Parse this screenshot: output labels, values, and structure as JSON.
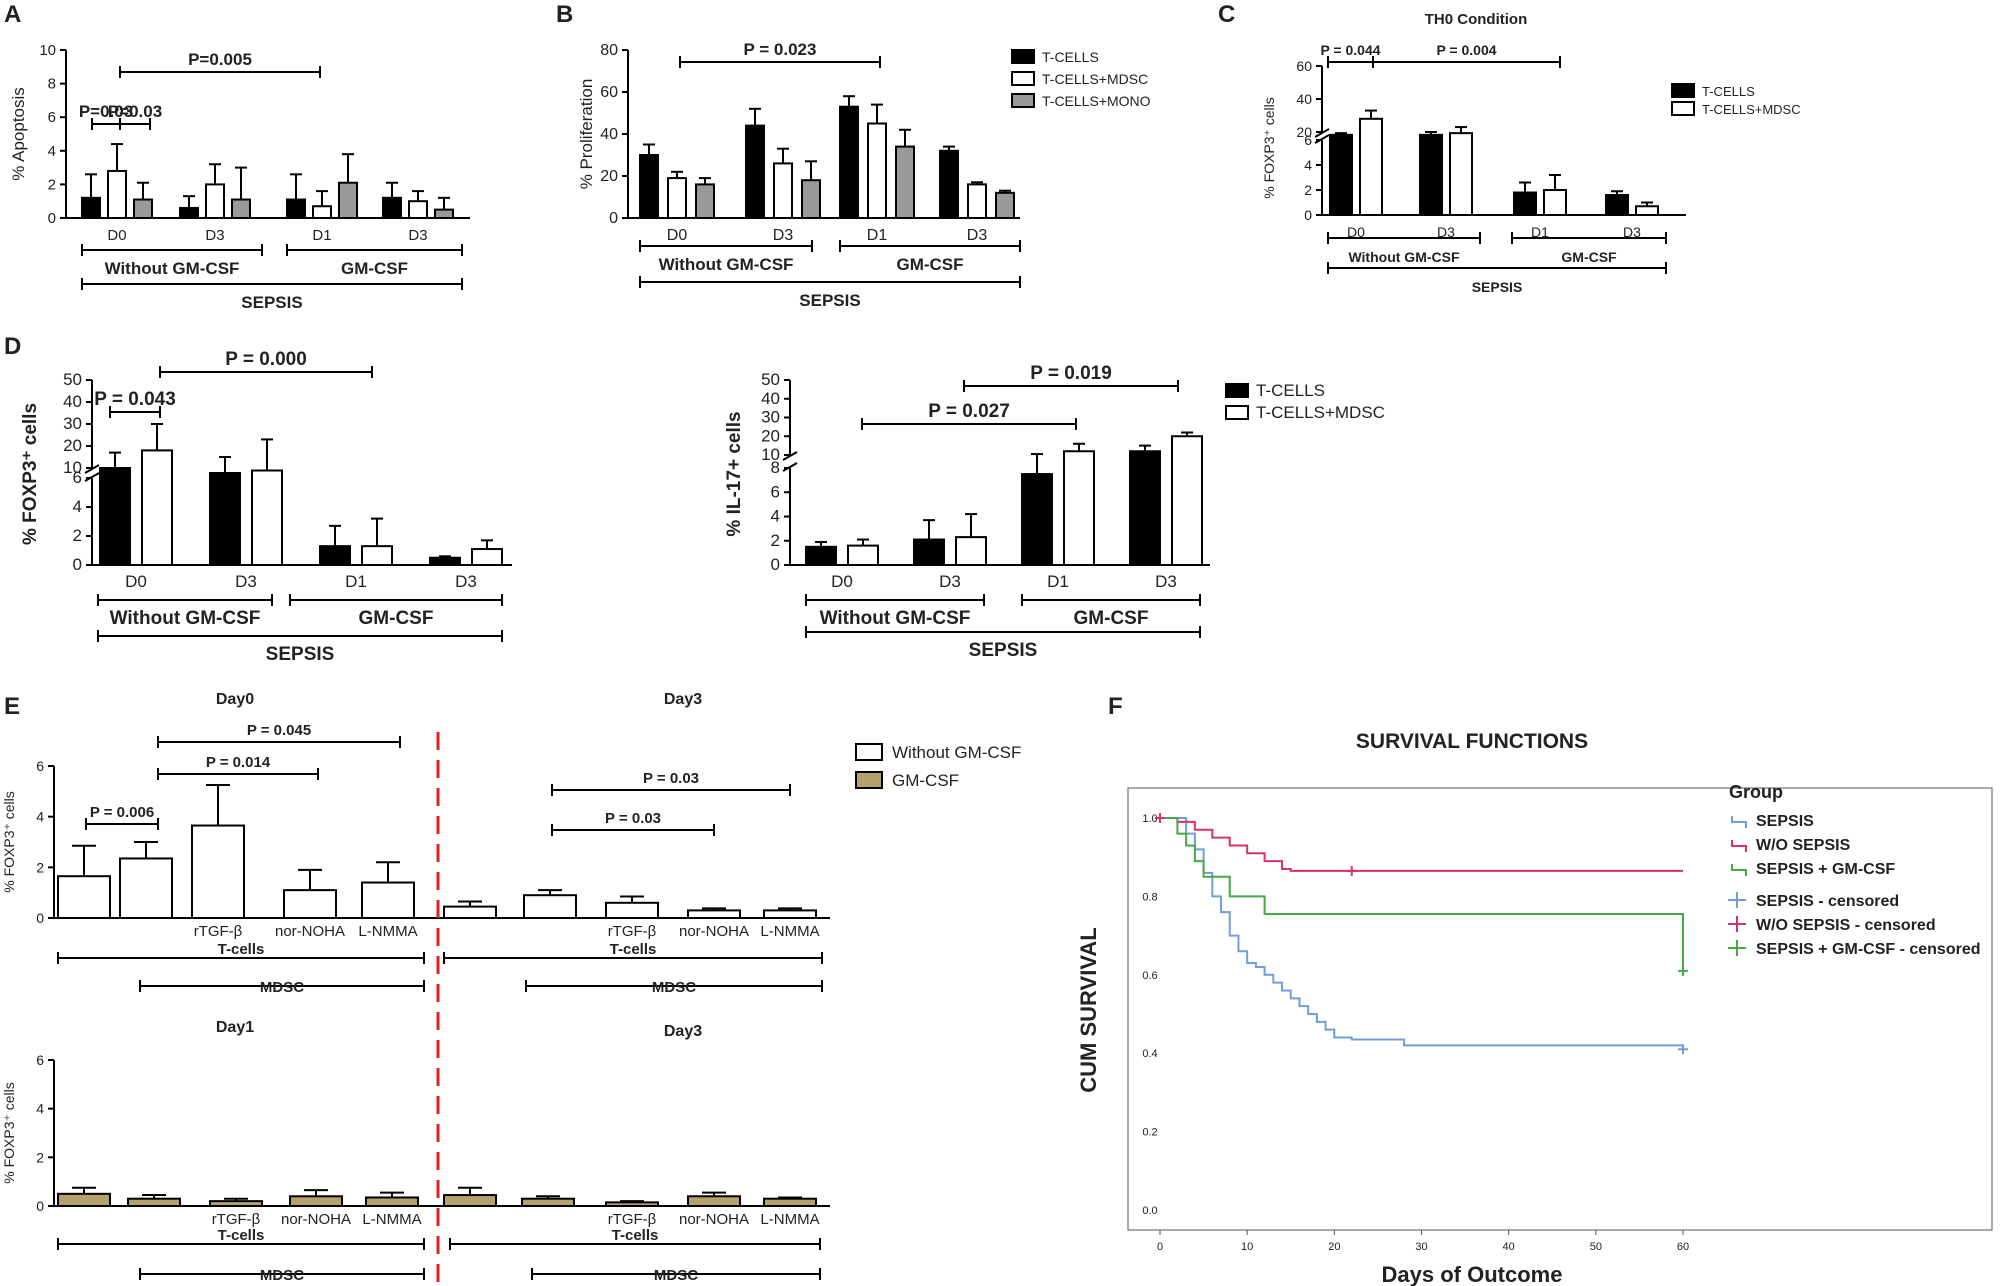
{
  "colors": {
    "black": "#000000",
    "white": "#ffffff",
    "grey": "#999999",
    "gold": "#b4a16b",
    "red": "#e02020",
    "sepsis": "#6f9fd8",
    "wo": "#d6336c",
    "gm": "#47a847"
  },
  "chart_data": [
    {
      "panel": "A",
      "type": "bar",
      "ylabel": "% Apoptosis",
      "ylim": [
        0,
        10
      ],
      "yticks": [
        0,
        2,
        4,
        6,
        8,
        10
      ],
      "categories": [
        "D0",
        "D3",
        "D1",
        "D3"
      ],
      "series": [
        {
          "name": "T-CELLS",
          "values": [
            1.2,
            0.6,
            1.1,
            1.2
          ],
          "err": [
            1.4,
            0.7,
            1.5,
            0.9
          ]
        },
        {
          "name": "T-CELLS+MDSC",
          "values": [
            2.8,
            2.0,
            0.7,
            1.0
          ],
          "err": [
            1.6,
            1.2,
            0.9,
            0.6
          ]
        },
        {
          "name": "T-CELLS+MONO",
          "values": [
            1.1,
            1.1,
            2.1,
            0.5
          ],
          "err": [
            1.0,
            1.9,
            1.7,
            0.7
          ]
        }
      ],
      "groups": [
        {
          "label": "Without GM-CSF",
          "from": 0,
          "to": 1
        },
        {
          "label": "GM-CSF",
          "from": 2,
          "to": 3
        }
      ],
      "super": "SEPSIS",
      "pvalues": [
        "P=0.005",
        "P=0.03",
        "P=0.03"
      ]
    },
    {
      "panel": "B",
      "type": "bar",
      "ylabel": "% Proliferation",
      "ylim": [
        0,
        80
      ],
      "yticks": [
        0,
        20,
        40,
        60,
        80
      ],
      "categories": [
        "D0",
        "D3",
        "D1",
        "D3"
      ],
      "series": [
        {
          "name": "T-CELLS",
          "values": [
            30,
            44,
            53,
            32
          ],
          "err": [
            5,
            8,
            5,
            2
          ]
        },
        {
          "name": "T-CELLS+MDSC",
          "values": [
            19,
            26,
            45,
            16
          ],
          "err": [
            3,
            7,
            9,
            1
          ]
        },
        {
          "name": "T-CELLS+MONO",
          "values": [
            16,
            18,
            34,
            12
          ],
          "err": [
            3,
            9,
            8,
            1
          ]
        }
      ],
      "groups": [
        {
          "label": "Without GM-CSF",
          "from": 0,
          "to": 1
        },
        {
          "label": "GM-CSF",
          "from": 2,
          "to": 3
        }
      ],
      "super": "SEPSIS",
      "pvalues": [
        "P = 0.023"
      ],
      "legend": [
        "T-CELLS",
        "T-CELLS+MDSC",
        "T-CELLS+MONO"
      ]
    },
    {
      "panel": "C",
      "type": "bar",
      "title": "TH0 Condition",
      "ylabel": "% FOXP3⁺ cells",
      "yticks_low": [
        "0",
        "2",
        "4",
        "6"
      ],
      "yticks_high": [
        "20",
        "40",
        "60"
      ],
      "categories": [
        "D0",
        "D3",
        "D1",
        "D3"
      ],
      "series": [
        {
          "name": "T-CELLS",
          "values": [
            15,
            15,
            1.8,
            1.6
          ],
          "err": [
            3,
            5,
            0.8,
            0.3
          ]
        },
        {
          "name": "T-CELLS+MDSC",
          "values": [
            28,
            18,
            2.0,
            0.7
          ],
          "err": [
            5,
            5,
            1.2,
            0.3
          ]
        }
      ],
      "groups": [
        {
          "label": "Without GM-CSF",
          "from": 0,
          "to": 1
        },
        {
          "label": "GM-CSF",
          "from": 2,
          "to": 3
        }
      ],
      "super": "SEPSIS",
      "pvalues": [
        "P = 0.044",
        "P = 0.004"
      ],
      "legend": [
        "T-CELLS",
        "T-CELLS+MDSC"
      ]
    },
    {
      "panel": "D",
      "type": "bar",
      "ylabel": "% FOXP3⁺ cells",
      "yticks_low": [
        "0",
        "2",
        "4",
        "6"
      ],
      "yticks_high": [
        "10",
        "20",
        "30",
        "40",
        "50"
      ],
      "categories": [
        "D0",
        "D3",
        "D1",
        "D3"
      ],
      "series": [
        {
          "name": "T-CELLS",
          "values": [
            10,
            8,
            1.3,
            0.5
          ],
          "err": [
            7,
            7,
            1.4,
            0.1
          ]
        },
        {
          "name": "T-CELLS+MDSC",
          "values": [
            18,
            9,
            1.3,
            1.1
          ],
          "err": [
            12,
            14,
            1.9,
            0.6
          ]
        }
      ],
      "groups": [
        {
          "label": "Without GM-CSF",
          "from": 0,
          "to": 1
        },
        {
          "label": "GM-CSF",
          "from": 2,
          "to": 3
        }
      ],
      "super": "SEPSIS",
      "pvalues": [
        "P = 0.043",
        "P = 0.000"
      ]
    },
    {
      "panel": "D2",
      "type": "bar",
      "ylabel": "% IL-17+ cells",
      "yticks_low": [
        "0",
        "2",
        "4",
        "6",
        "8"
      ],
      "yticks_high": [
        "10",
        "20",
        "30",
        "40",
        "50"
      ],
      "categories": [
        "D0",
        "D3",
        "D1",
        "D3"
      ],
      "series": [
        {
          "name": "T-CELLS",
          "values": [
            1.5,
            2.1,
            7.5,
            12
          ],
          "err": [
            0.4,
            1.6,
            3,
            3
          ]
        },
        {
          "name": "T-CELLS+MDSC",
          "values": [
            1.6,
            2.3,
            12,
            20
          ],
          "err": [
            0.5,
            1.9,
            4,
            2
          ]
        }
      ],
      "groups": [
        {
          "label": "Without GM-CSF",
          "from": 0,
          "to": 1
        },
        {
          "label": "GM-CSF",
          "from": 2,
          "to": 3
        }
      ],
      "super": "SEPSIS",
      "pvalues": [
        "P = 0.019",
        "P = 0.027"
      ],
      "legend": [
        "T-CELLS",
        "T-CELLS+MDSC"
      ]
    },
    {
      "panel": "E",
      "type": "bar",
      "ylabel": "% FOXP3⁺ cells",
      "ylim": [
        0,
        6
      ],
      "yticks": [
        0,
        2,
        4,
        6
      ],
      "subplots": [
        {
          "title": "Day0",
          "categories": [
            "",
            "",
            "rTGF-β",
            "nor-NOHA",
            "L-NMMA"
          ],
          "values": [
            1.65,
            2.35,
            3.65,
            1.1,
            1.4
          ],
          "err": [
            1.2,
            0.65,
            1.6,
            0.8,
            0.8
          ],
          "color": "white",
          "pvalues": [
            "P = 0.045",
            "P = 0.014",
            "P = 0.006"
          ]
        },
        {
          "title": "Day3",
          "categories": [
            "",
            "",
            "rTGF-β",
            "nor-NOHA",
            "L-NMMA"
          ],
          "values": [
            0.45,
            0.9,
            0.6,
            0.3,
            0.3
          ],
          "err": [
            0.2,
            0.2,
            0.25,
            0.08,
            0.08
          ],
          "color": "white",
          "pvalues": [
            "P = 0.03",
            "P = 0.03"
          ]
        },
        {
          "title": "Day1",
          "categories": [
            "",
            "",
            "rTGF-β",
            "nor-NOHA",
            "L-NMMA"
          ],
          "values": [
            0.5,
            0.3,
            0.2,
            0.4,
            0.35
          ],
          "err": [
            0.25,
            0.15,
            0.1,
            0.25,
            0.2
          ],
          "color": "gold"
        },
        {
          "title": "Day3",
          "categories": [
            "",
            "",
            "rTGF-β",
            "nor-NOHA",
            "L-NMMA"
          ],
          "values": [
            0.45,
            0.3,
            0.15,
            0.4,
            0.3
          ],
          "err": [
            0.3,
            0.1,
            0.05,
            0.15,
            0.05
          ],
          "color": "gold"
        }
      ],
      "brackets": [
        "T-cells",
        "MDSC"
      ],
      "legend": [
        "Without GM-CSF",
        "GM-CSF"
      ]
    },
    {
      "panel": "F",
      "type": "line",
      "title": "SURVIVAL FUNCTIONS",
      "xlabel": "Days of Outcome",
      "ylabel": "CUM SURVIVAL",
      "xlim": [
        0,
        60
      ],
      "ylim": [
        0,
        1
      ],
      "xticks": [
        "0",
        "10",
        "20",
        "30",
        "40",
        "50",
        "60"
      ],
      "yticks": [
        "0.0",
        "0.2",
        "0.4",
        "0.6",
        "0.8",
        "1.0"
      ],
      "legend_title": "Group",
      "series": [
        {
          "name": "SEPSIS",
          "x": [
            0,
            3,
            4,
            5,
            6,
            7,
            8,
            9,
            10,
            11,
            12,
            13,
            14,
            15,
            16,
            17,
            18,
            19,
            20,
            22,
            28,
            60
          ],
          "y": [
            1.0,
            0.96,
            0.92,
            0.86,
            0.8,
            0.76,
            0.7,
            0.66,
            0.63,
            0.62,
            0.6,
            0.58,
            0.56,
            0.54,
            0.52,
            0.5,
            0.48,
            0.46,
            0.44,
            0.435,
            0.42,
            0.41
          ]
        },
        {
          "name": "W/O SEPSIS",
          "x": [
            0,
            2,
            4,
            6,
            8,
            10,
            12,
            14,
            15,
            60
          ],
          "y": [
            1.0,
            0.99,
            0.97,
            0.95,
            0.93,
            0.91,
            0.89,
            0.87,
            0.865,
            0.865
          ]
        },
        {
          "name": "SEPSIS + GM-CSF",
          "x": [
            0,
            2,
            3,
            4,
            5,
            8,
            12,
            60
          ],
          "y": [
            1.0,
            0.96,
            0.93,
            0.89,
            0.85,
            0.8,
            0.755,
            0.61
          ]
        }
      ],
      "censored": [
        {
          "name": "SEPSIS - censored",
          "x": [
            60
          ],
          "y": [
            0.41
          ]
        },
        {
          "name": "W/O SEPSIS - censored",
          "x": [
            0,
            22
          ],
          "y": [
            1.0,
            0.865
          ]
        },
        {
          "name": "SEPSIS + GM-CSF - censored",
          "x": [
            60
          ],
          "y": [
            0.61
          ]
        }
      ]
    }
  ]
}
